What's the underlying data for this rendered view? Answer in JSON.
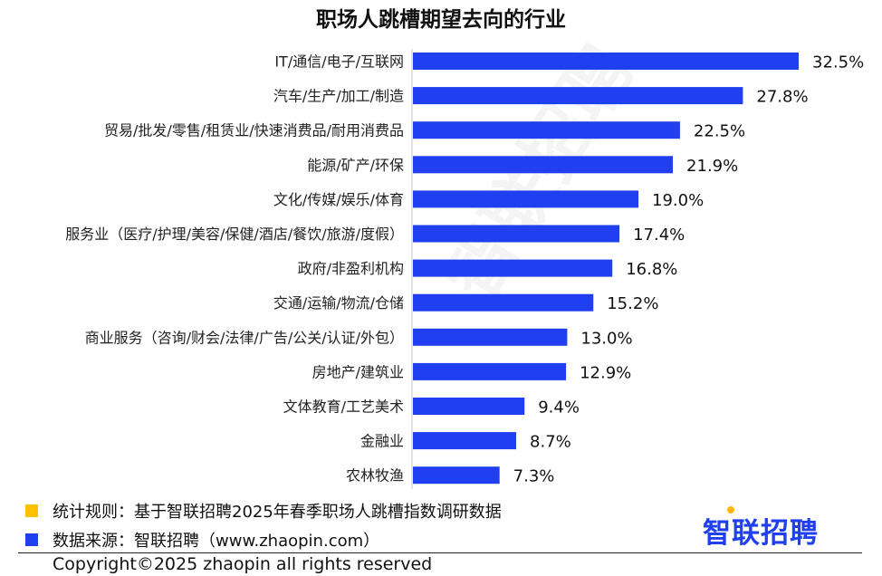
{
  "chart_data": {
    "type": "bar",
    "orientation": "horizontal",
    "title": "职场人跳槽期望去向的行业",
    "categories": [
      "IT/通信/电子/互联网",
      "汽车/生产/加工/制造",
      "贸易/批发/零售/租赁业/快速消费品/耐用消费品",
      "能源/矿产/环保",
      "文化/传媒/娱乐/体育",
      "服务业（医疗/护理/美容/保健/酒店/餐饮/旅游/度假）",
      "政府/非盈利机构",
      "交通/运输/物流/仓储",
      "商业服务（咨询/财会/法律/广告/公关/认证/外包）",
      "房地产/建筑业",
      "文体教育/工艺美术",
      "金融业",
      "农林牧渔"
    ],
    "values": [
      32.5,
      27.8,
      22.5,
      21.9,
      19.0,
      17.4,
      16.8,
      15.2,
      13.0,
      12.9,
      9.4,
      8.7,
      7.3
    ],
    "value_labels": [
      "32.5%",
      "27.8%",
      "22.5%",
      "21.9%",
      "19.0%",
      "17.4%",
      "16.8%",
      "15.2%",
      "13.0%",
      "12.9%",
      "9.4%",
      "8.7%",
      "7.3%"
    ],
    "unit": "%",
    "xlim": [
      0,
      32.5
    ],
    "grid": false,
    "bar_color": "#1f3ff0"
  },
  "watermark": "智联招聘",
  "footer": {
    "rule_label": "统计规则：基于智联招聘2025年春季职场人跳槽指数调研数据",
    "rule_color": "#ffc000",
    "source_label": "数据来源：智联招聘（www.zhaopin.com）",
    "source_color": "#1f3ff0",
    "copyright": "Copyright©2025 zhaopin all rights reserved"
  },
  "brand": {
    "name": "智联招聘",
    "color": "#1f3ff0",
    "accent": "#ffb800"
  }
}
